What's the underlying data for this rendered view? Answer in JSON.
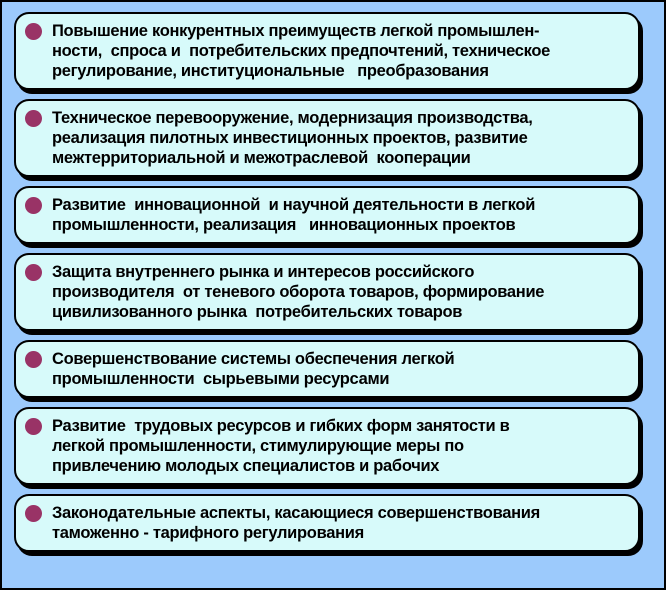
{
  "colors": {
    "page_background": "#9ccafc",
    "box_fill": "#d7fafa",
    "outline": "#000000",
    "bullet": "#993366",
    "text": "#000000"
  },
  "bullet_icon": "filled-circle",
  "boxes": [
    {
      "lines": [
        "Повышение конкурентных преимуществ легкой промышлен-",
        "ности,  спроса и  потребительских предпочтений, техническое",
        "регулирование, институциональные   преобразования"
      ]
    },
    {
      "lines": [
        "Техническое перевооружение, модернизация производства,",
        "реализация пилотных инвестиционных проектов, развитие",
        "межтерриториальной и межотраслевой  кооперации"
      ]
    },
    {
      "lines": [
        "Развитие  инновационной  и научной деятельности в легкой",
        "промышленности, реализация   инновационных проектов"
      ]
    },
    {
      "lines": [
        "Защита внутреннего рынка и интересов российского",
        "производителя  от теневого оборота товаров, формирование",
        "цивилизованного рынка  потребительских товаров"
      ]
    },
    {
      "lines": [
        "Совершенствование системы обеспечения легкой",
        "промышленности  сырьевыми ресурсами"
      ]
    },
    {
      "lines": [
        "Развитие  трудовых ресурсов и гибких форм занятости в",
        "легкой промышленности, стимулирующие меры по",
        "привлечению молодых специалистов и рабочих"
      ]
    },
    {
      "lines": [
        "Законодательные аспекты, касающиеся совершенствования",
        "таможенно - тарифного регулирования"
      ]
    }
  ]
}
